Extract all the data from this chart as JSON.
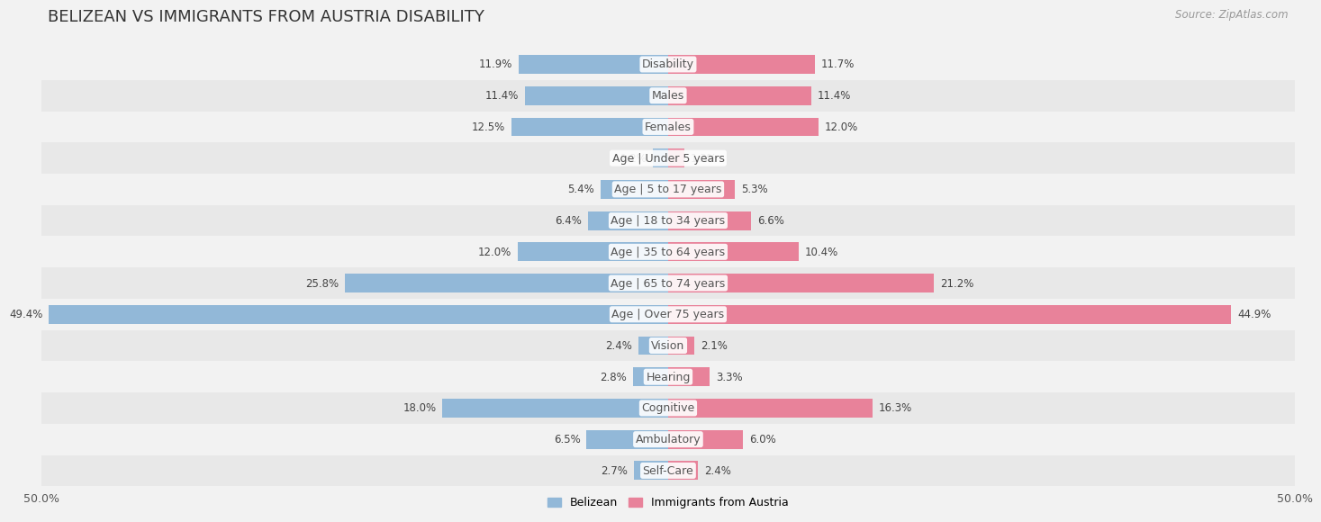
{
  "title": "BELIZEAN VS IMMIGRANTS FROM AUSTRIA DISABILITY",
  "source": "Source: ZipAtlas.com",
  "categories": [
    "Disability",
    "Males",
    "Females",
    "Age | Under 5 years",
    "Age | 5 to 17 years",
    "Age | 18 to 34 years",
    "Age | 35 to 64 years",
    "Age | 65 to 74 years",
    "Age | Over 75 years",
    "Vision",
    "Hearing",
    "Cognitive",
    "Ambulatory",
    "Self-Care"
  ],
  "belizean": [
    11.9,
    11.4,
    12.5,
    1.2,
    5.4,
    6.4,
    12.0,
    25.8,
    49.4,
    2.4,
    2.8,
    18.0,
    6.5,
    2.7
  ],
  "austria": [
    11.7,
    11.4,
    12.0,
    1.3,
    5.3,
    6.6,
    10.4,
    21.2,
    44.9,
    2.1,
    3.3,
    16.3,
    6.0,
    2.4
  ],
  "belizean_color": "#92b8d8",
  "austria_color": "#e8829a",
  "bar_height": 0.6,
  "xlim": 50.0,
  "row_colors": [
    "#f2f2f2",
    "#e8e8e8"
  ],
  "fig_bg": "#f2f2f2",
  "title_fontsize": 13,
  "label_fontsize": 9,
  "value_fontsize": 8.5,
  "legend_fontsize": 9
}
